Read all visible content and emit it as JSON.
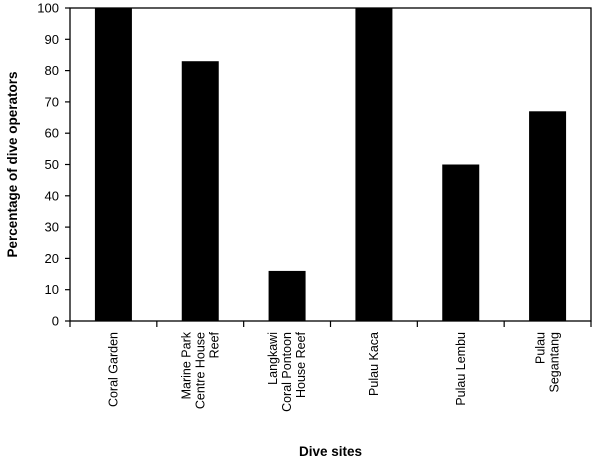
{
  "chart_data": {
    "type": "bar",
    "categories": [
      [
        "Coral Garden"
      ],
      [
        "Marine Park",
        "Centre House",
        "Reef"
      ],
      [
        "Langkawi",
        "Coral Pontoon",
        "House Reef"
      ],
      [
        "Pulau Kaca"
      ],
      [
        "Pulau Lembu"
      ],
      [
        "Pulau",
        "Segantang"
      ]
    ],
    "values": [
      100,
      83,
      16,
      100,
      50,
      67
    ],
    "title": "",
    "xlabel": "Dive sites",
    "ylabel": "Percentage of dive operators",
    "ylim": [
      0,
      100
    ],
    "yticks": [
      0,
      10,
      20,
      30,
      40,
      50,
      60,
      70,
      80,
      90,
      100
    ],
    "grid": false,
    "legend": "none",
    "bar_color": "#000000"
  }
}
